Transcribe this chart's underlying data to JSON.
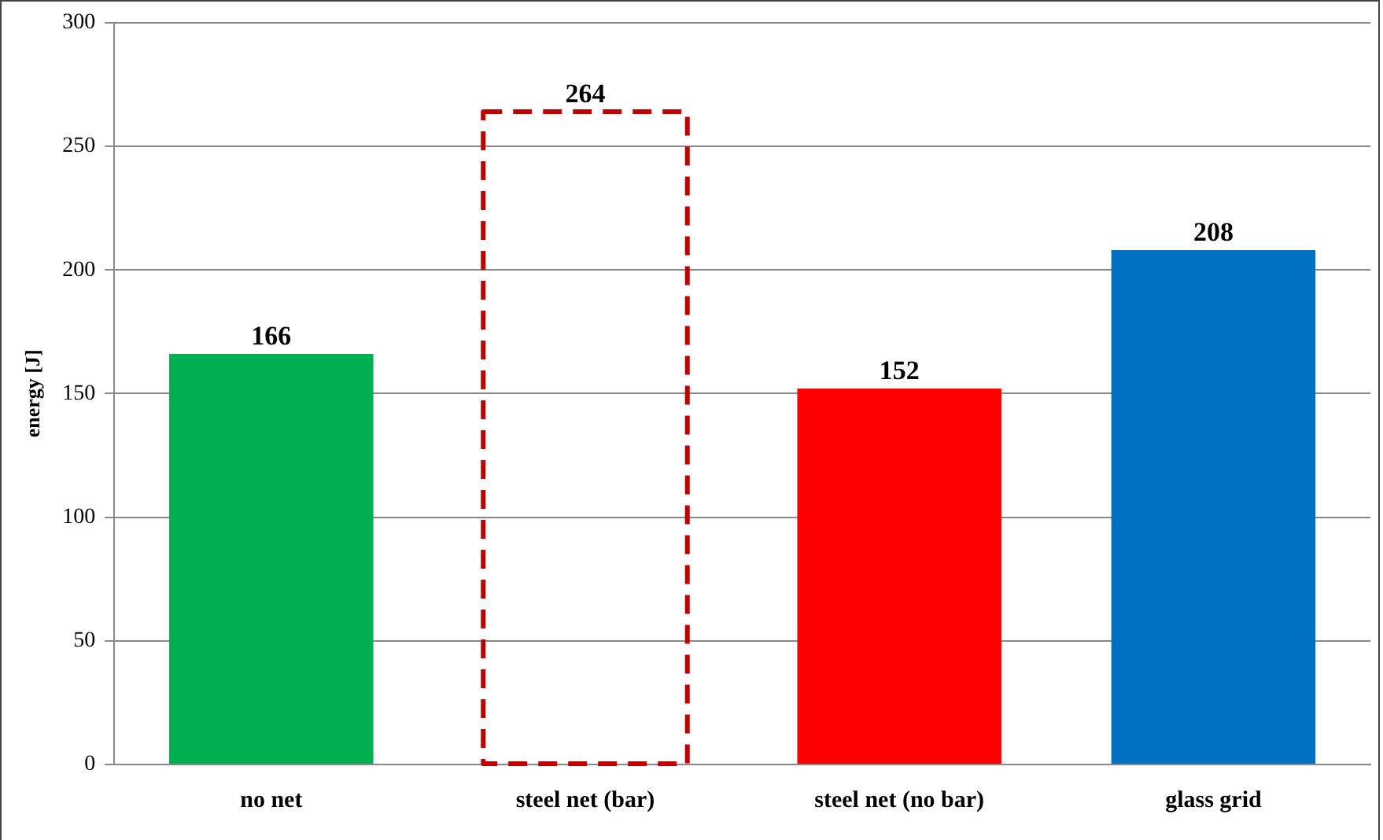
{
  "chart_data": {
    "type": "bar",
    "ylabel": "energy [J]",
    "categories": [
      "no net",
      "steel net (bar)",
      "steel net (no bar)",
      "glass grid"
    ],
    "series": [
      {
        "colors": [
          "#00b050",
          null,
          "#ff0000",
          "#0070c0"
        ],
        "values": [
          166,
          null,
          152,
          208
        ]
      },
      {
        "color": "#c00000",
        "line_style": "dashed",
        "values": [
          null,
          264,
          null,
          null
        ]
      }
    ],
    "ylim": [
      0,
      300
    ],
    "yticks": [
      0,
      50,
      100,
      150,
      200,
      250,
      300
    ],
    "grid": "y",
    "data_labels": true,
    "legend": false
  }
}
